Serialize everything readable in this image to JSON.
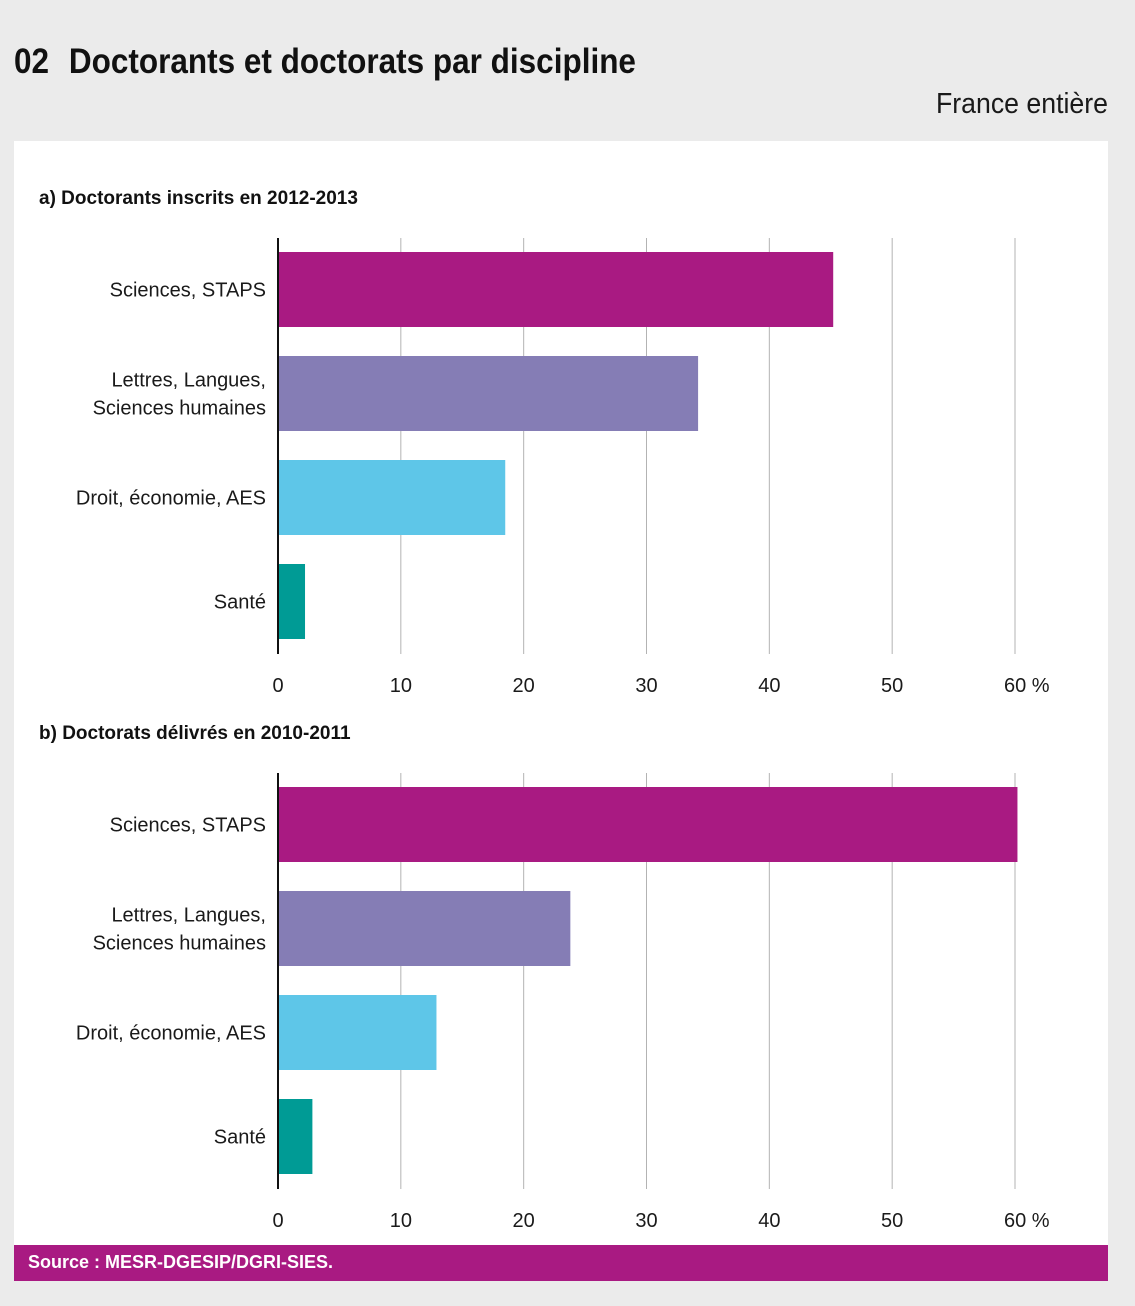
{
  "header": {
    "number": "02",
    "title": "Doctorants et doctorats par discipline",
    "subtitle": "France entière"
  },
  "colors": {
    "sciences": "#a91a82",
    "lettres": "#857db5",
    "droit": "#5ec6e8",
    "sante": "#009b95",
    "source_bar": "#a91a82"
  },
  "chart_data": [
    {
      "type": "bar",
      "orientation": "horizontal",
      "title": "a) Doctorants inscrits en 2012-2013",
      "categories": [
        [
          "Sciences, STAPS"
        ],
        [
          "Lettres, Langues,",
          "Sciences humaines"
        ],
        [
          "Droit, économie, AES"
        ],
        [
          "Santé"
        ]
      ],
      "values": [
        45.2,
        34.2,
        18.5,
        2.2
      ],
      "category_colors": [
        "#a91a82",
        "#857db5",
        "#5ec6e8",
        "#009b95"
      ],
      "xlim": [
        0,
        60
      ],
      "ticks": [
        0,
        10,
        20,
        30,
        40,
        50,
        60
      ],
      "tick_labels": [
        "0",
        "10",
        "20",
        "30",
        "40",
        "50",
        "60 %"
      ],
      "grid": true
    },
    {
      "type": "bar",
      "orientation": "horizontal",
      "title": "b) Doctorats délivrés en 2010-2011",
      "categories": [
        [
          "Sciences, STAPS"
        ],
        [
          "Lettres, Langues,",
          "Sciences humaines"
        ],
        [
          "Droit, économie, AES"
        ],
        [
          "Santé"
        ]
      ],
      "values": [
        60.2,
        23.8,
        12.9,
        2.8
      ],
      "category_colors": [
        "#a91a82",
        "#857db5",
        "#5ec6e8",
        "#009b95"
      ],
      "xlim": [
        0,
        60
      ],
      "ticks": [
        0,
        10,
        20,
        30,
        40,
        50,
        60
      ],
      "tick_labels": [
        "0",
        "10",
        "20",
        "30",
        "40",
        "50",
        "60 %"
      ],
      "grid": true
    }
  ],
  "footer": {
    "source": "Source : MESR-DGESIP/DGRI-SIES."
  }
}
